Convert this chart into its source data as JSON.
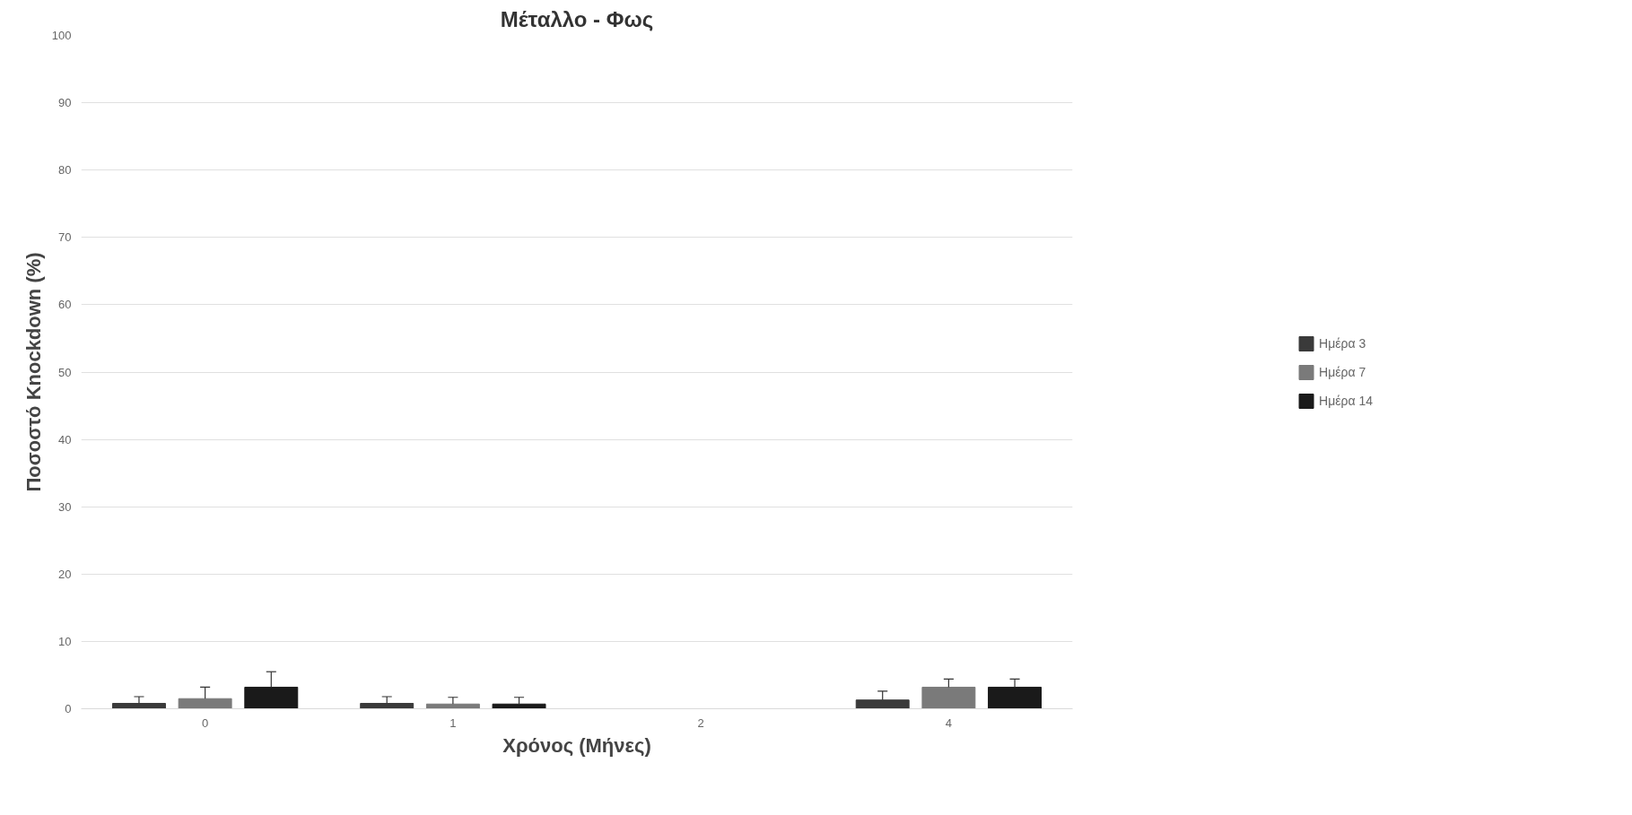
{
  "chart_data": {
    "type": "bar",
    "title": "Μέταλλο - Φως",
    "xlabel": "Χρόνος (Μήνες)",
    "ylabel": "Ποσοστό Knockdown (%)",
    "categories": [
      "0",
      "1",
      "2",
      "4"
    ],
    "series": [
      {
        "name": "Ημέρα 3",
        "color": "#3a3a3a",
        "values": [
          0.8,
          0.8,
          null,
          1.3
        ],
        "errors": [
          [
            0.8,
            1.8
          ],
          [
            0.8,
            1.8
          ],
          null,
          [
            1.3,
            2.6
          ]
        ]
      },
      {
        "name": "Ημέρα 7",
        "color": "#7a7a7a",
        "values": [
          1.5,
          0.7,
          null,
          3.2
        ],
        "errors": [
          [
            1.5,
            3.2
          ],
          [
            0.7,
            1.7
          ],
          null,
          [
            3.2,
            4.4
          ]
        ]
      },
      {
        "name": "Ημέρα 14",
        "color": "#1a1a1a",
        "values": [
          3.2,
          0.7,
          null,
          3.2
        ],
        "errors": [
          [
            3.2,
            5.5
          ],
          [
            0.7,
            1.7
          ],
          null,
          [
            3.2,
            4.4
          ]
        ]
      }
    ],
    "ylim": [
      0,
      100
    ],
    "yticks": [
      0,
      10,
      20,
      30,
      40,
      50,
      60,
      70,
      80,
      90,
      100
    ],
    "grid": "y",
    "legend": "right"
  }
}
